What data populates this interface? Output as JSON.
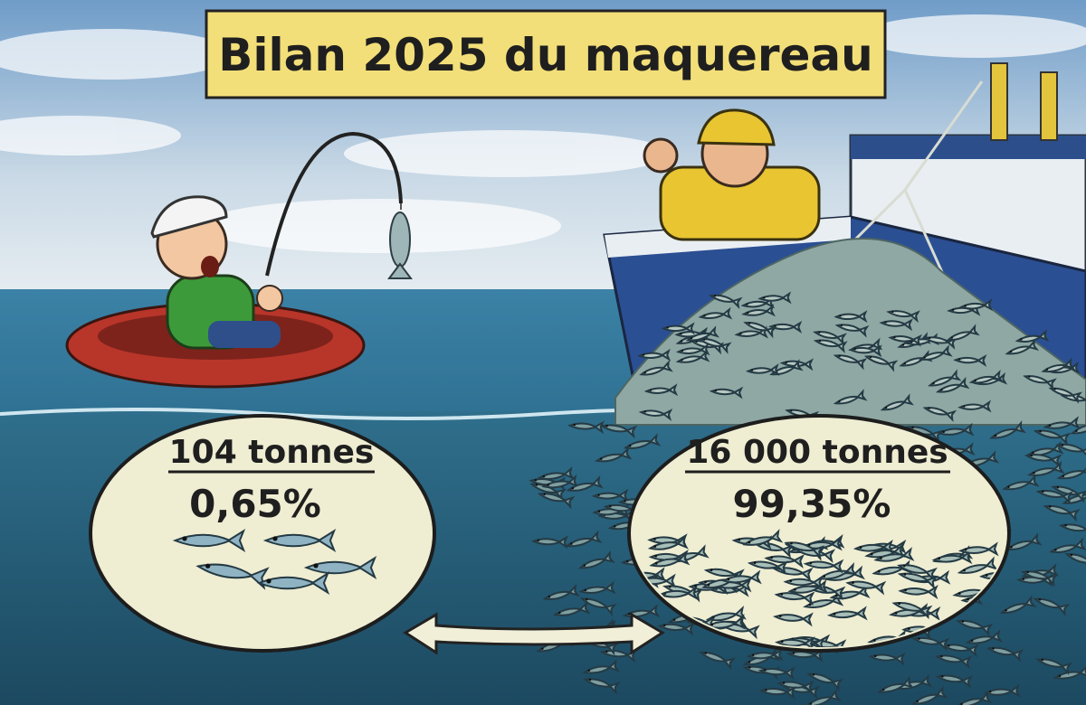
{
  "title": "Bilan 2025 du maquereau",
  "panels": [
    {
      "amount": "104 tonnes",
      "share": "0,65%"
    },
    {
      "amount": "16 000 tonnes",
      "share": "99,35%"
    }
  ]
}
